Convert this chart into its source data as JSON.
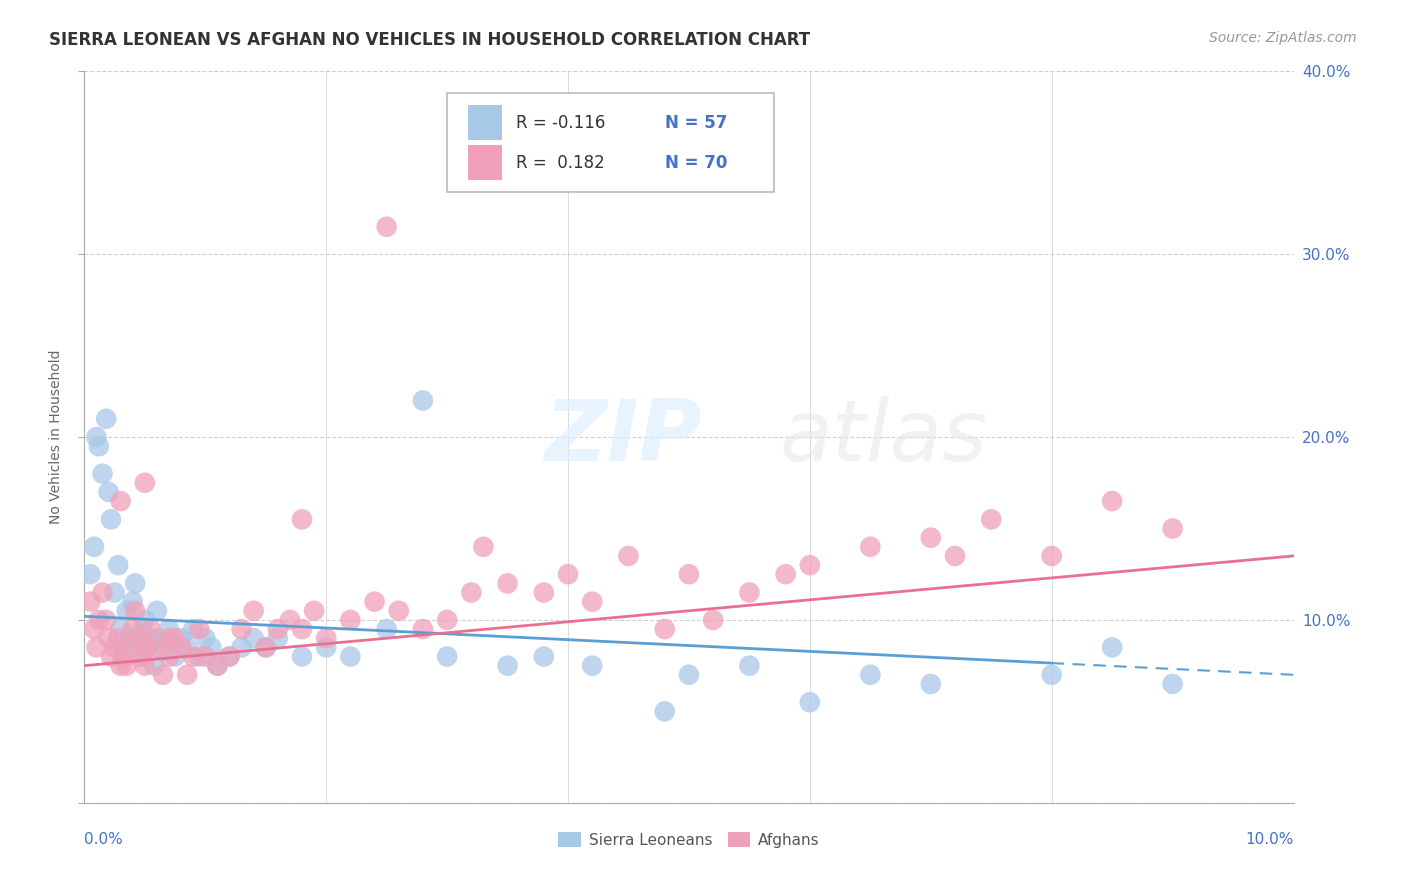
{
  "title": "SIERRA LEONEAN VS AFGHAN NO VEHICLES IN HOUSEHOLD CORRELATION CHART",
  "source": "Source: ZipAtlas.com",
  "ylabel": "No Vehicles in Household",
  "legend1_r": "R = -0.116",
  "legend1_n": "N = 57",
  "legend2_r": "R =  0.182",
  "legend2_n": "N = 70",
  "legend_label1": "Sierra Leoneans",
  "legend_label2": "Afghans",
  "color_blue": "#a8c8e8",
  "color_pink": "#f0a0b8",
  "line_blue": "#5a9fd4",
  "line_pink": "#e87090",
  "watermark_zip": "ZIP",
  "watermark_atlas": "atlas",
  "xlim": [
    0.0,
    10.0
  ],
  "ylim": [
    0.0,
    40.0
  ],
  "blue_text_color": "#4472c4",
  "title_color": "#333333",
  "ylabel_color": "#666666",
  "source_color": "#999999",
  "grid_color": "#cccccc",
  "bg_color": "#ffffff",
  "sierra_x": [
    0.05,
    0.08,
    0.1,
    0.12,
    0.15,
    0.18,
    0.2,
    0.22,
    0.25,
    0.28,
    0.3,
    0.32,
    0.35,
    0.38,
    0.4,
    0.42,
    0.45,
    0.48,
    0.5,
    0.52,
    0.55,
    0.58,
    0.6,
    0.62,
    0.65,
    0.7,
    0.75,
    0.8,
    0.85,
    0.9,
    0.95,
    1.0,
    1.05,
    1.1,
    1.2,
    1.3,
    1.4,
    1.5,
    1.6,
    1.8,
    2.0,
    2.2,
    2.5,
    2.8,
    3.0,
    3.5,
    3.8,
    4.2,
    4.8,
    5.0,
    5.5,
    6.0,
    6.5,
    7.0,
    8.0,
    8.5,
    9.0
  ],
  "sierra_y": [
    12.5,
    14.0,
    20.0,
    19.5,
    18.0,
    21.0,
    17.0,
    15.5,
    11.5,
    13.0,
    9.5,
    8.5,
    10.5,
    9.0,
    11.0,
    12.0,
    8.0,
    9.5,
    10.0,
    8.5,
    9.0,
    7.5,
    10.5,
    9.0,
    8.5,
    9.5,
    8.0,
    9.0,
    8.5,
    9.5,
    8.0,
    9.0,
    8.5,
    7.5,
    8.0,
    8.5,
    9.0,
    8.5,
    9.0,
    8.0,
    8.5,
    8.0,
    9.5,
    22.0,
    8.0,
    7.5,
    8.0,
    7.5,
    5.0,
    7.0,
    7.5,
    5.5,
    7.0,
    6.5,
    7.0,
    8.5,
    6.5
  ],
  "afghan_x": [
    0.05,
    0.08,
    0.1,
    0.12,
    0.15,
    0.18,
    0.2,
    0.22,
    0.25,
    0.28,
    0.3,
    0.32,
    0.35,
    0.38,
    0.4,
    0.42,
    0.45,
    0.48,
    0.5,
    0.52,
    0.55,
    0.6,
    0.65,
    0.7,
    0.75,
    0.8,
    0.85,
    0.9,
    0.95,
    1.0,
    1.1,
    1.2,
    1.3,
    1.4,
    1.5,
    1.6,
    1.7,
    1.8,
    1.9,
    2.0,
    2.2,
    2.4,
    2.6,
    2.8,
    3.0,
    3.2,
    3.5,
    3.8,
    4.0,
    4.2,
    4.5,
    5.0,
    5.5,
    6.0,
    6.5,
    7.0,
    7.5,
    8.0,
    8.5,
    9.0,
    0.3,
    0.5,
    0.7,
    2.5,
    4.8,
    5.2,
    1.8,
    3.3,
    5.8,
    7.2
  ],
  "afghan_y": [
    11.0,
    9.5,
    8.5,
    10.0,
    11.5,
    10.0,
    9.0,
    8.0,
    8.5,
    9.0,
    7.5,
    8.0,
    7.5,
    8.5,
    9.5,
    10.5,
    9.0,
    8.0,
    7.5,
    8.5,
    9.5,
    8.5,
    7.0,
    8.0,
    9.0,
    8.5,
    7.0,
    8.0,
    9.5,
    8.0,
    7.5,
    8.0,
    9.5,
    10.5,
    8.5,
    9.5,
    10.0,
    9.5,
    10.5,
    9.0,
    10.0,
    11.0,
    10.5,
    9.5,
    10.0,
    11.5,
    12.0,
    11.5,
    12.5,
    11.0,
    13.5,
    12.5,
    11.5,
    13.0,
    14.0,
    14.5,
    15.5,
    13.5,
    16.5,
    15.0,
    16.5,
    17.5,
    9.0,
    31.5,
    9.5,
    10.0,
    15.5,
    14.0,
    12.5,
    13.5
  ],
  "sierra_line_x0": 0.0,
  "sierra_line_x1": 10.0,
  "sierra_line_y0": 10.2,
  "sierra_line_y1": 7.0,
  "afghan_line_x0": 0.0,
  "afghan_line_x1": 10.0,
  "afghan_line_y0": 7.5,
  "afghan_line_y1": 13.5,
  "sierra_solid_end": 8.0,
  "title_fontsize": 12,
  "source_fontsize": 10,
  "tick_fontsize": 11,
  "ylabel_fontsize": 10,
  "legend_fontsize": 12
}
